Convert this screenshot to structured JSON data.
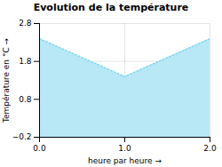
{
  "chart_data": {
    "type": "area",
    "title": "Evolution de la température",
    "x_label": "heure par heure",
    "y_label": "Température en °C",
    "x": [
      0,
      1,
      2
    ],
    "series": [
      {
        "type": "area",
        "color": "#b8e8f5",
        "values": [
          2.4,
          1.4,
          2.4
        ]
      },
      {
        "type": "line",
        "color": "#7dd8ee",
        "line_style": "dotted",
        "values": [
          2.4,
          1.4,
          2.4
        ]
      }
    ],
    "xlim": [
      0,
      2
    ],
    "ylim": [
      -0.2,
      2.8
    ],
    "xticks": [
      0,
      1,
      2
    ],
    "yticks": [
      -0.2,
      0.8,
      1.8,
      2.8
    ],
    "grid": true
  }
}
